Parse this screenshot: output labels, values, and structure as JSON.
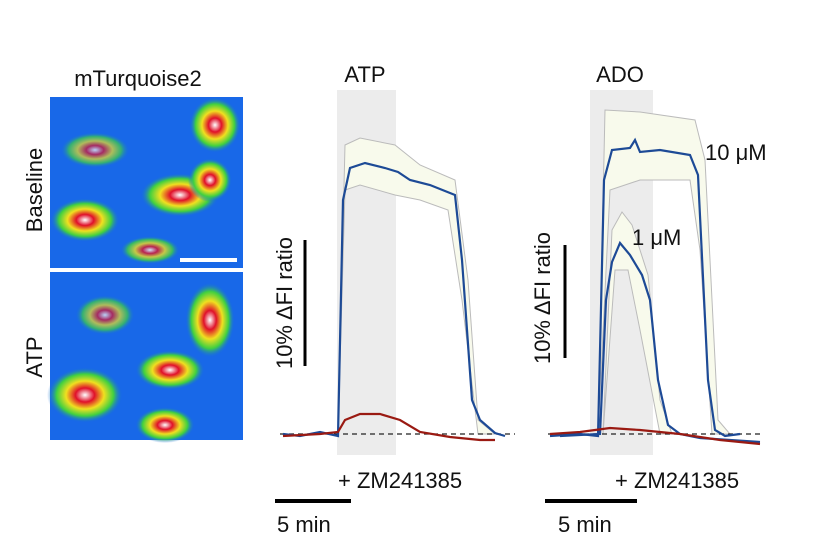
{
  "images": {
    "title": "mTurquoise2",
    "rows": [
      "Baseline",
      "ATP"
    ]
  },
  "panels": [
    {
      "title": "ATP",
      "scale_label": "10% ΔFI ratio",
      "treatment": "+ ZM241385",
      "time_scale": "5 min"
    },
    {
      "title": "ADO",
      "scale_label": "10% ΔFI ratio",
      "treatment": "+ ZM241385",
      "time_scale": "5 min",
      "labels": [
        "10 μM",
        "1 μM"
      ]
    }
  ]
}
